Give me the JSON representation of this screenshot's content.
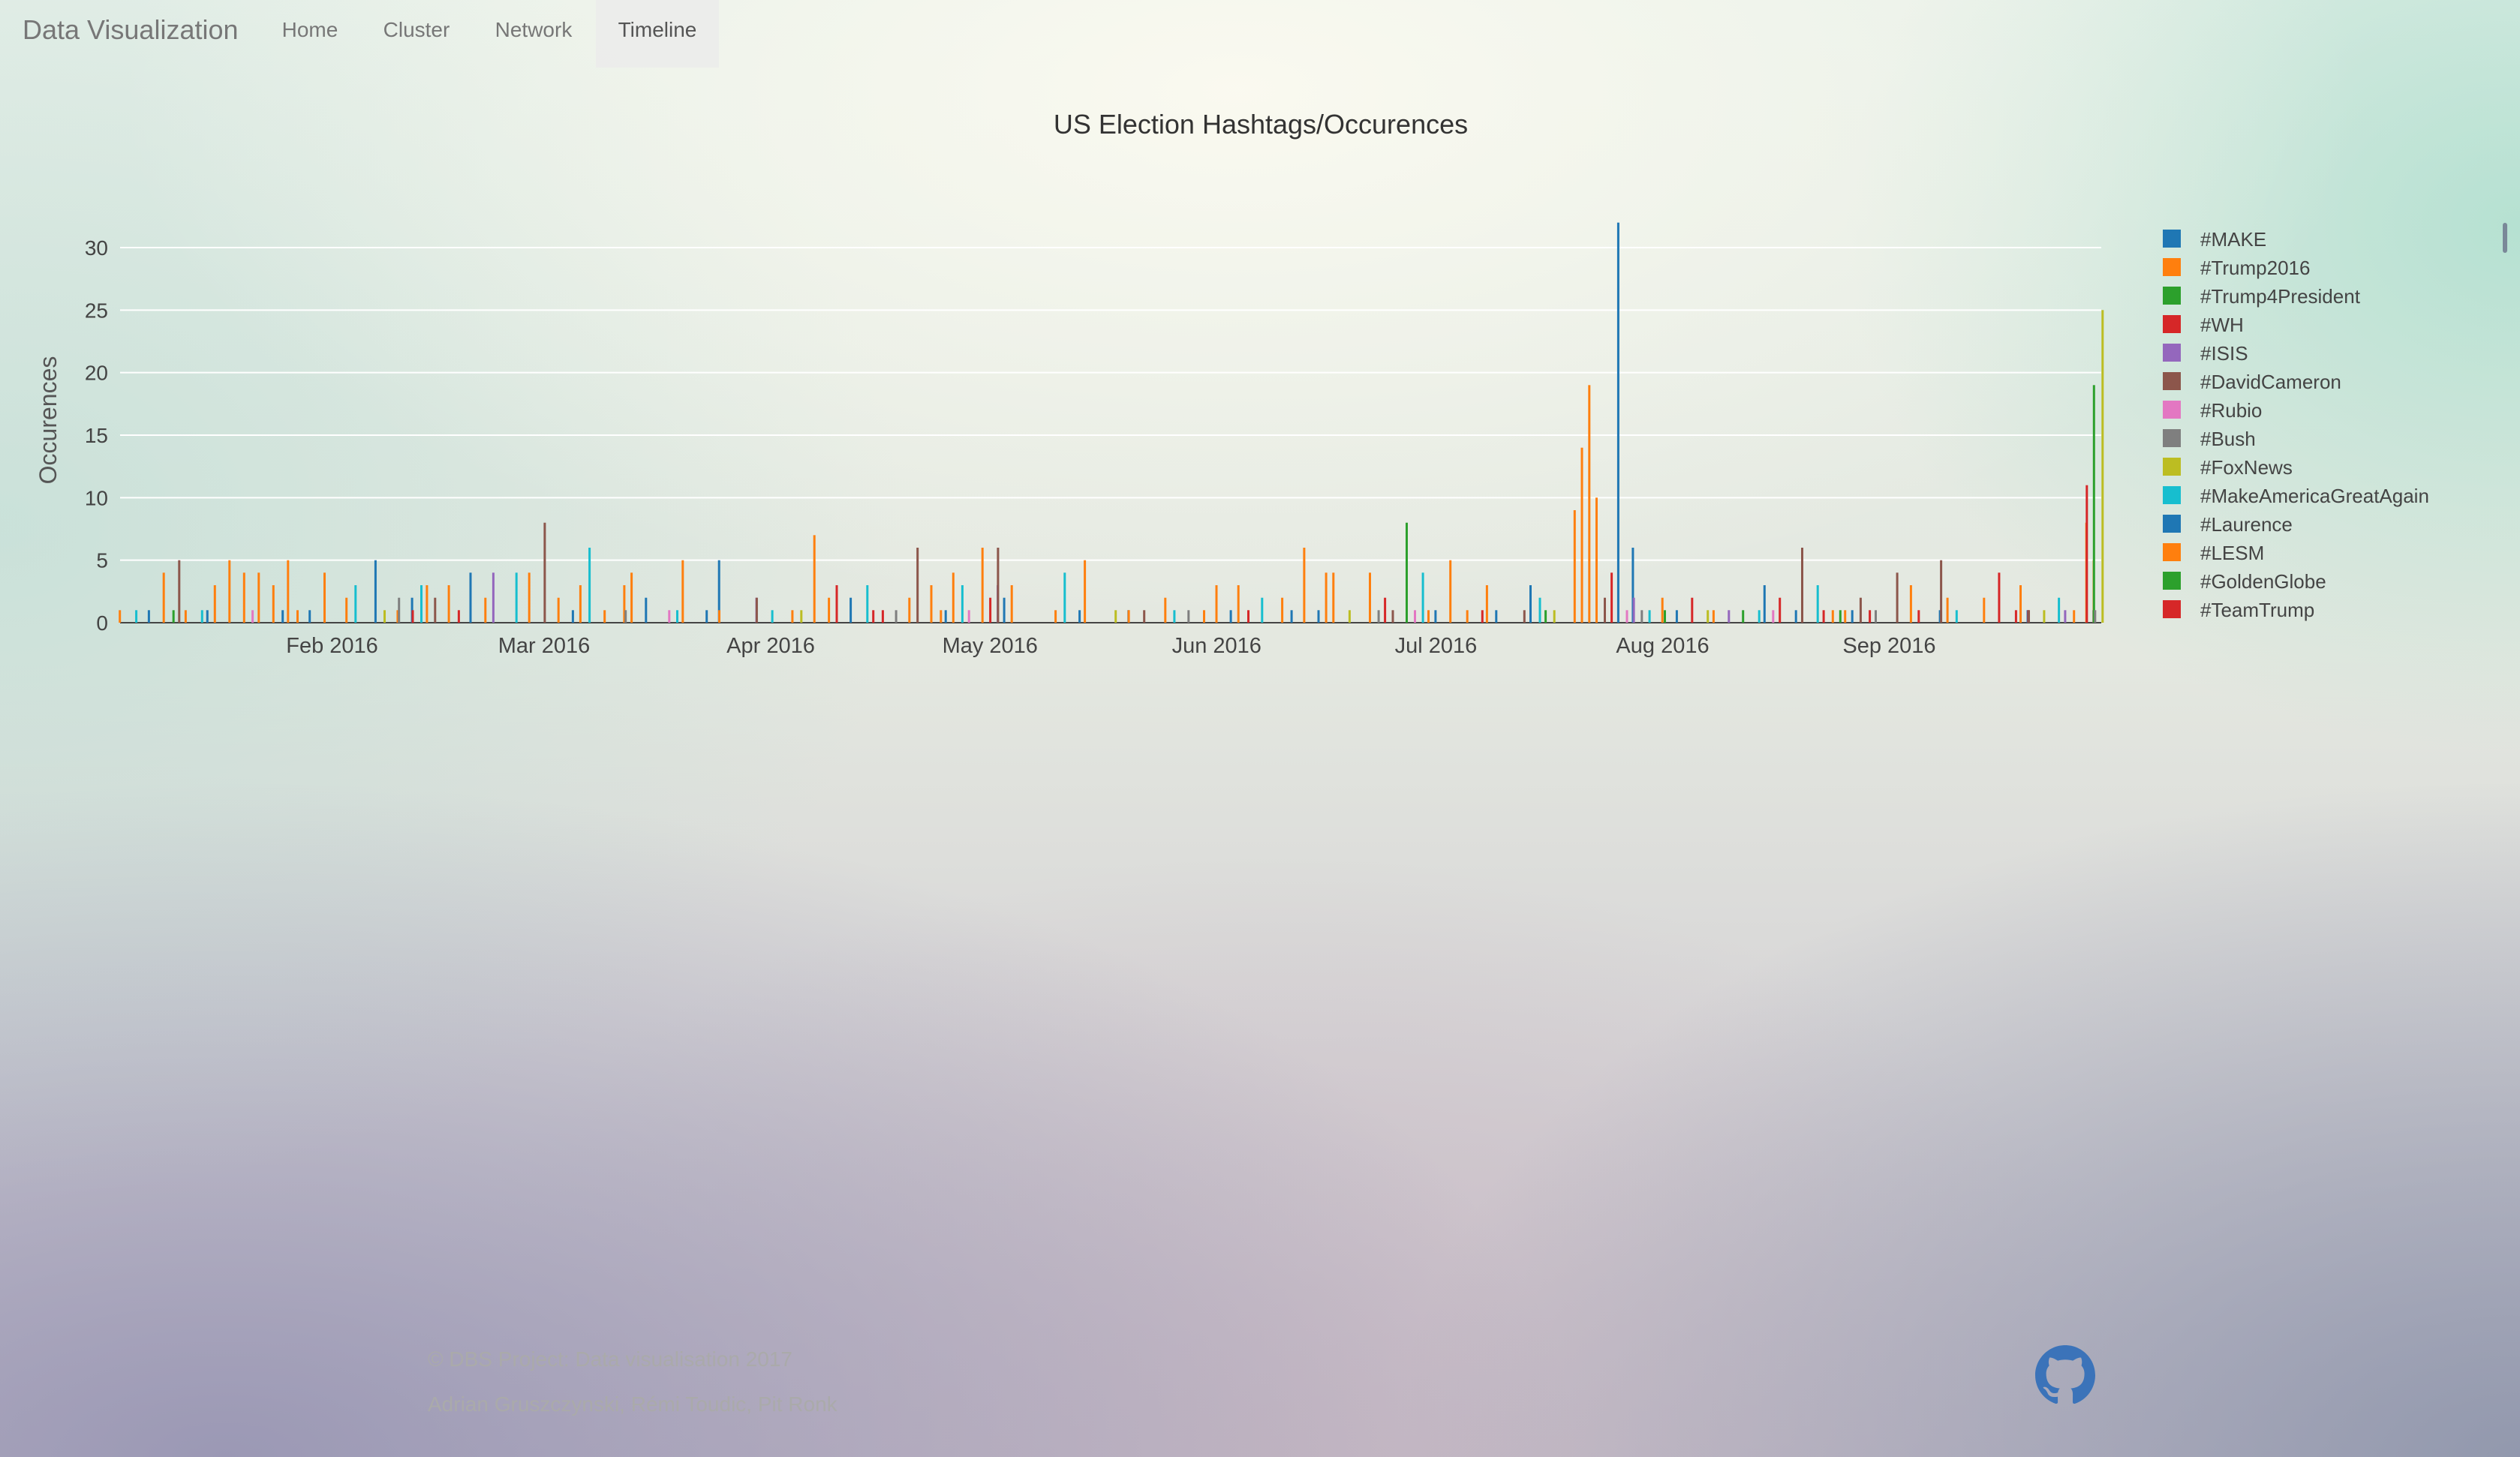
{
  "navbar": {
    "brand": "Data Visualization",
    "items": [
      {
        "label": "Home",
        "active": false
      },
      {
        "label": "Cluster",
        "active": false
      },
      {
        "label": "Network",
        "active": false
      },
      {
        "label": "Timeline",
        "active": true
      }
    ]
  },
  "footer": {
    "copyright": "© DBS Project: Data visualisation 2017",
    "authors": "Adrian Gruszczynski, Rémi Toudic, Pit Ronk",
    "github_icon": "github-icon",
    "github_color": "#3b73b9"
  },
  "chart_data": {
    "type": "bar",
    "title": "US Election Hashtags/Occurences",
    "xlabel": "",
    "ylabel": "Occurences",
    "ylim": [
      0,
      33
    ],
    "yticks": [
      0,
      5,
      10,
      15,
      20,
      25,
      30
    ],
    "xlim": [
      "2016-01-03",
      "2016-09-30"
    ],
    "xticks": [
      {
        "date": "2016-02-01",
        "label": "Feb 2016"
      },
      {
        "date": "2016-03-01",
        "label": "Mar 2016"
      },
      {
        "date": "2016-04-01",
        "label": "Apr 2016"
      },
      {
        "date": "2016-05-01",
        "label": "May 2016"
      },
      {
        "date": "2016-06-01",
        "label": "Jun 2016"
      },
      {
        "date": "2016-07-01",
        "label": "Jul 2016"
      },
      {
        "date": "2016-08-01",
        "label": "Aug 2016"
      },
      {
        "date": "2016-09-01",
        "label": "Sep 2016"
      }
    ],
    "grid": true,
    "legend_position": "right",
    "series": [
      {
        "name": "#MAKE",
        "color": "#1f77b4",
        "points": [
          [
            "2016-01-07",
            1
          ],
          [
            "2016-01-15",
            1
          ],
          [
            "2016-01-29",
            1
          ],
          [
            "2016-02-07",
            5
          ],
          [
            "2016-02-12",
            2
          ],
          [
            "2016-02-20",
            4
          ],
          [
            "2016-03-05",
            1
          ],
          [
            "2016-03-15",
            2
          ],
          [
            "2016-03-25",
            5
          ],
          [
            "2016-04-12",
            2
          ],
          [
            "2016-04-25",
            1
          ],
          [
            "2016-05-03",
            2
          ],
          [
            "2016-05-20",
            1
          ],
          [
            "2016-06-03",
            1
          ],
          [
            "2016-06-15",
            1
          ],
          [
            "2016-07-01",
            1
          ],
          [
            "2016-07-14",
            3
          ],
          [
            "2016-07-26",
            32
          ],
          [
            "2016-07-28",
            6
          ],
          [
            "2016-08-03",
            1
          ],
          [
            "2016-08-15",
            3
          ],
          [
            "2016-08-27",
            1
          ],
          [
            "2016-09-08",
            1
          ],
          [
            "2016-09-20",
            1
          ],
          [
            "2016-09-29",
            1
          ]
        ]
      },
      {
        "name": "#Trump2016",
        "color": "#ff7f0e",
        "points": [
          [
            "2016-01-03",
            1
          ],
          [
            "2016-01-09",
            4
          ],
          [
            "2016-01-12",
            1
          ],
          [
            "2016-01-16",
            3
          ],
          [
            "2016-01-18",
            5
          ],
          [
            "2016-01-20",
            4
          ],
          [
            "2016-01-22",
            4
          ],
          [
            "2016-01-24",
            3
          ],
          [
            "2016-01-26",
            5
          ],
          [
            "2016-01-31",
            4
          ],
          [
            "2016-02-03",
            2
          ],
          [
            "2016-02-10",
            1
          ],
          [
            "2016-02-14",
            3
          ],
          [
            "2016-02-17",
            3
          ],
          [
            "2016-02-22",
            2
          ],
          [
            "2016-02-28",
            4
          ],
          [
            "2016-03-03",
            2
          ],
          [
            "2016-03-06",
            3
          ],
          [
            "2016-03-12",
            3
          ],
          [
            "2016-03-13",
            4
          ],
          [
            "2016-03-20",
            5
          ],
          [
            "2016-03-25",
            1
          ],
          [
            "2016-04-04",
            1
          ],
          [
            "2016-04-07",
            7
          ],
          [
            "2016-04-09",
            2
          ],
          [
            "2016-04-20",
            2
          ],
          [
            "2016-04-23",
            3
          ],
          [
            "2016-04-26",
            4
          ],
          [
            "2016-04-30",
            6
          ],
          [
            "2016-05-04",
            3
          ],
          [
            "2016-05-10",
            1
          ],
          [
            "2016-05-14",
            5
          ],
          [
            "2016-05-20",
            1
          ],
          [
            "2016-05-25",
            2
          ],
          [
            "2016-06-01",
            3
          ],
          [
            "2016-06-04",
            3
          ],
          [
            "2016-06-10",
            2
          ],
          [
            "2016-06-13",
            6
          ],
          [
            "2016-06-16",
            4
          ],
          [
            "2016-06-17",
            4
          ],
          [
            "2016-06-22",
            4
          ],
          [
            "2016-06-30",
            1
          ],
          [
            "2016-07-03",
            5
          ],
          [
            "2016-07-08",
            3
          ],
          [
            "2016-07-20",
            9
          ],
          [
            "2016-07-21",
            14
          ],
          [
            "2016-07-22",
            19
          ],
          [
            "2016-07-23",
            10
          ],
          [
            "2016-08-01",
            2
          ],
          [
            "2016-08-08",
            1
          ],
          [
            "2016-08-26",
            1
          ],
          [
            "2016-09-04",
            3
          ],
          [
            "2016-09-09",
            2
          ],
          [
            "2016-09-14",
            2
          ],
          [
            "2016-09-19",
            3
          ],
          [
            "2016-09-28",
            8
          ],
          [
            "2016-09-29",
            5
          ]
        ]
      },
      {
        "name": "#Trump4President",
        "color": "#2ca02c",
        "points": [
          [
            "2016-06-27",
            8
          ],
          [
            "2016-07-16",
            1
          ],
          [
            "2016-08-12",
            1
          ],
          [
            "2016-09-29",
            19
          ]
        ]
      },
      {
        "name": "#WH",
        "color": "#d62728",
        "points": [
          [
            "2016-02-12",
            1
          ],
          [
            "2016-04-10",
            3
          ],
          [
            "2016-04-15",
            1
          ],
          [
            "2016-05-01",
            2
          ],
          [
            "2016-06-24",
            2
          ],
          [
            "2016-07-25",
            4
          ],
          [
            "2016-08-05",
            2
          ],
          [
            "2016-08-17",
            2
          ],
          [
            "2016-08-23",
            1
          ],
          [
            "2016-09-05",
            1
          ],
          [
            "2016-09-16",
            4
          ],
          [
            "2016-09-20",
            1
          ],
          [
            "2016-09-28",
            11
          ]
        ]
      },
      {
        "name": "#ISIS",
        "color": "#9467bd",
        "points": [
          [
            "2016-02-23",
            4
          ],
          [
            "2016-03-30",
            2
          ],
          [
            "2016-05-02",
            3
          ],
          [
            "2016-07-28",
            2
          ],
          [
            "2016-08-10",
            1
          ],
          [
            "2016-09-25",
            1
          ]
        ]
      },
      {
        "name": "#DavidCameron",
        "color": "#8c564b",
        "points": [
          [
            "2016-01-11",
            5
          ],
          [
            "2016-02-15",
            2
          ],
          [
            "2016-03-01",
            8
          ],
          [
            "2016-03-30",
            2
          ],
          [
            "2016-04-21",
            6
          ],
          [
            "2016-05-02",
            6
          ],
          [
            "2016-05-22",
            1
          ],
          [
            "2016-06-25",
            1
          ],
          [
            "2016-07-13",
            1
          ],
          [
            "2016-07-24",
            2
          ],
          [
            "2016-08-20",
            6
          ],
          [
            "2016-08-28",
            2
          ],
          [
            "2016-09-02",
            4
          ],
          [
            "2016-09-08",
            5
          ],
          [
            "2016-09-20",
            1
          ]
        ]
      },
      {
        "name": "#Rubio",
        "color": "#e377c2",
        "points": [
          [
            "2016-01-21",
            1
          ],
          [
            "2016-03-18",
            1
          ],
          [
            "2016-04-28",
            1
          ],
          [
            "2016-06-28",
            1
          ],
          [
            "2016-07-27",
            1
          ],
          [
            "2016-08-16",
            1
          ]
        ]
      },
      {
        "name": "#Bush",
        "color": "#7f7f7f",
        "points": [
          [
            "2016-02-10",
            2
          ],
          [
            "2016-03-12",
            1
          ],
          [
            "2016-04-18",
            1
          ],
          [
            "2016-05-28",
            1
          ],
          [
            "2016-06-23",
            1
          ],
          [
            "2016-07-29",
            1
          ],
          [
            "2016-08-30",
            1
          ],
          [
            "2016-09-29",
            1
          ]
        ]
      },
      {
        "name": "#FoxNews",
        "color": "#bcbd22",
        "points": [
          [
            "2016-02-08",
            1
          ],
          [
            "2016-04-05",
            1
          ],
          [
            "2016-05-18",
            1
          ],
          [
            "2016-06-19",
            1
          ],
          [
            "2016-07-17",
            1
          ],
          [
            "2016-08-07",
            1
          ],
          [
            "2016-09-22",
            1
          ],
          [
            "2016-09-30",
            25
          ]
        ]
      },
      {
        "name": "#MakeAmericaGreatAgain",
        "color": "#17becf",
        "points": [
          [
            "2016-01-05",
            1
          ],
          [
            "2016-01-14",
            1
          ],
          [
            "2016-02-04",
            3
          ],
          [
            "2016-02-13",
            3
          ],
          [
            "2016-02-26",
            4
          ],
          [
            "2016-03-07",
            6
          ],
          [
            "2016-03-19",
            1
          ],
          [
            "2016-04-01",
            1
          ],
          [
            "2016-04-14",
            3
          ],
          [
            "2016-04-27",
            3
          ],
          [
            "2016-05-11",
            4
          ],
          [
            "2016-05-26",
            1
          ],
          [
            "2016-06-07",
            2
          ],
          [
            "2016-06-29",
            4
          ],
          [
            "2016-07-15",
            2
          ],
          [
            "2016-07-30",
            1
          ],
          [
            "2016-08-14",
            1
          ],
          [
            "2016-08-22",
            3
          ],
          [
            "2016-09-10",
            1
          ],
          [
            "2016-09-24",
            2
          ]
        ]
      },
      {
        "name": "#Laurence",
        "color": "#1f77b4",
        "points": [
          [
            "2016-01-25",
            1
          ],
          [
            "2016-03-23",
            1
          ],
          [
            "2016-05-13",
            1
          ],
          [
            "2016-06-11",
            1
          ],
          [
            "2016-07-09",
            1
          ],
          [
            "2016-08-19",
            1
          ]
        ]
      },
      {
        "name": "#LESM",
        "color": "#ff7f0e",
        "points": [
          [
            "2016-01-27",
            1
          ],
          [
            "2016-03-09",
            1
          ],
          [
            "2016-04-24",
            1
          ],
          [
            "2016-05-30",
            1
          ],
          [
            "2016-07-05",
            1
          ],
          [
            "2016-08-24",
            1
          ],
          [
            "2016-09-26",
            1
          ]
        ]
      },
      {
        "name": "#GoldenGlobe",
        "color": "#2ca02c",
        "points": [
          [
            "2016-01-10",
            1
          ],
          [
            "2016-08-01",
            1
          ],
          [
            "2016-08-25",
            1
          ]
        ]
      },
      {
        "name": "#TeamTrump",
        "color": "#d62728",
        "points": [
          [
            "2016-02-18",
            1
          ],
          [
            "2016-04-16",
            1
          ],
          [
            "2016-06-05",
            1
          ],
          [
            "2016-07-07",
            1
          ],
          [
            "2016-08-29",
            1
          ],
          [
            "2016-09-18",
            1
          ]
        ]
      }
    ]
  }
}
